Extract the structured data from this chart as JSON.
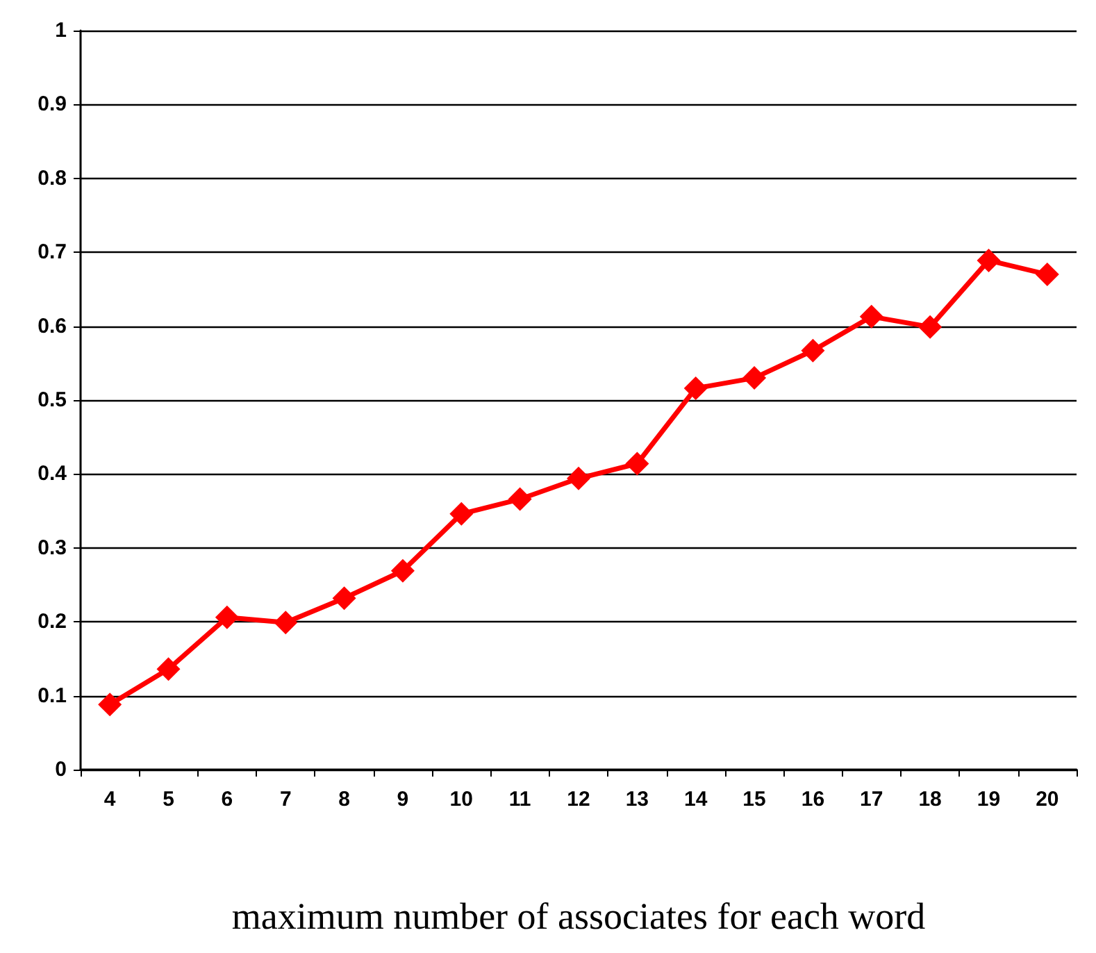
{
  "chart_data": {
    "type": "line",
    "xlabel": "maximum number of associates for each word",
    "categories": [
      "4",
      "5",
      "6",
      "7",
      "8",
      "9",
      "10",
      "11",
      "12",
      "13",
      "14",
      "15",
      "16",
      "17",
      "18",
      "19",
      "20"
    ],
    "series": [
      {
        "color": "#ff0000",
        "values": [
          0.088,
          0.136,
          0.206,
          0.199,
          0.232,
          0.269,
          0.346,
          0.366,
          0.394,
          0.414,
          0.516,
          0.53,
          0.567,
          0.613,
          0.599,
          0.689,
          0.67
        ]
      }
    ],
    "ylim": [
      0,
      1
    ],
    "yticks": [
      0,
      0.1,
      0.2,
      0.3,
      0.4,
      0.5,
      0.6,
      0.7,
      0.8,
      0.9,
      1
    ],
    "grid": "y",
    "marker": "diamond",
    "line_style": "solid"
  }
}
